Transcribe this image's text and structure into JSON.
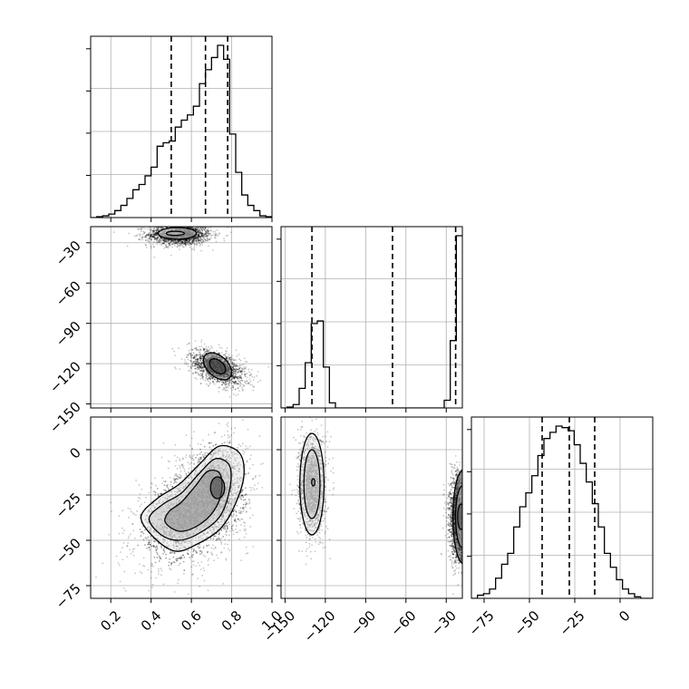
{
  "chart_data": {
    "type": "corner",
    "title": "",
    "parameters": [
      {
        "label": "",
        "range": [
          0.1,
          1.0
        ],
        "ticks": [
          0.2,
          0.4,
          0.6,
          0.8,
          1.0
        ],
        "tick_labels": [
          "0.2",
          "0.4",
          "0.6",
          "0.8",
          "1.0"
        ]
      },
      {
        "label": "",
        "range": [
          -153,
          -18
        ],
        "ticks": [
          -150,
          -120,
          -90,
          -60,
          -30
        ],
        "tick_labels": [
          "−150",
          "−120",
          "−90",
          "−60",
          "−30"
        ]
      },
      {
        "label": "",
        "range": [
          -82,
          18
        ],
        "ticks": [
          -75,
          -50,
          -25,
          0
        ],
        "tick_labels": [
          "−75",
          "−50",
          "−25",
          "0"
        ]
      }
    ],
    "grid": true,
    "histograms": [
      {
        "param": 0,
        "bin_edges": [
          0.1,
          0.13,
          0.16,
          0.19,
          0.22,
          0.25,
          0.28,
          0.31,
          0.34,
          0.37,
          0.4,
          0.43,
          0.46,
          0.49,
          0.52,
          0.55,
          0.58,
          0.61,
          0.64,
          0.67,
          0.7,
          0.73,
          0.76,
          0.79,
          0.82,
          0.85,
          0.88,
          0.91,
          0.94,
          0.97,
          1.0
        ],
        "counts": [
          0.0,
          0.005,
          0.01,
          0.02,
          0.04,
          0.07,
          0.11,
          0.16,
          0.19,
          0.24,
          0.29,
          0.41,
          0.43,
          0.44,
          0.52,
          0.56,
          0.59,
          0.64,
          0.77,
          0.85,
          0.92,
          0.99,
          0.91,
          0.48,
          0.26,
          0.13,
          0.07,
          0.04,
          0.01,
          0.005
        ],
        "quantiles": [
          0.5,
          0.67,
          0.78
        ]
      },
      {
        "param": 1,
        "bin_edges": [
          -153,
          -148.5,
          -144,
          -139.5,
          -135,
          -130.5,
          -126,
          -121.5,
          -117,
          -112.5,
          -108,
          -103.5,
          -99,
          -94.5,
          -90,
          -85.5,
          -81,
          -76.5,
          -72,
          -67.5,
          -63,
          -58.5,
          -54,
          -49.5,
          -45,
          -40.5,
          -36,
          -31.5,
          -27,
          -22.5,
          -18
        ],
        "counts": [
          0.0,
          0.01,
          0.04,
          0.23,
          0.53,
          0.99,
          1.02,
          0.48,
          0.06,
          0.0,
          0.0,
          0.0,
          0.0,
          0.0,
          0.0,
          0.0,
          0.0,
          0.0,
          0.0,
          0.0,
          0.0,
          0.0,
          0.0,
          0.0,
          0.0,
          0.0,
          0.0,
          0.09,
          0.79,
          2.02
        ],
        "quantiles": [
          -130,
          -70,
          -23
        ]
      },
      {
        "param": 2,
        "bin_edges": [
          -82,
          -78.67,
          -75.33,
          -72,
          -68.67,
          -65.33,
          -62,
          -58.67,
          -55.33,
          -52,
          -48.67,
          -45.33,
          -42,
          -38.67,
          -35.33,
          -32,
          -28.67,
          -25.33,
          -22,
          -18.67,
          -15.33,
          -12,
          -8.67,
          -5.33,
          -2,
          1.33,
          4.67,
          8,
          11.33,
          14.67,
          18
        ],
        "counts": [
          0.0,
          0.02,
          0.03,
          0.06,
          0.13,
          0.22,
          0.29,
          0.46,
          0.59,
          0.68,
          0.79,
          0.92,
          1.03,
          1.07,
          1.11,
          1.1,
          1.08,
          0.99,
          0.87,
          0.75,
          0.61,
          0.46,
          0.29,
          0.2,
          0.12,
          0.06,
          0.03,
          0.01,
          0.0,
          0.0
        ],
        "quantiles": [
          -43,
          -28,
          -14
        ]
      }
    ],
    "scatter_panels": [
      {
        "x_param": 0,
        "y_param": 1,
        "clusters": [
          {
            "cx": 0.54,
            "cy": -24,
            "sx": 0.08,
            "sy": 4,
            "rho": 0.0,
            "n": 1500
          },
          {
            "cx": 0.73,
            "cy": -123,
            "sx": 0.07,
            "sy": 7,
            "rho": -0.5,
            "n": 1300
          }
        ],
        "contours": [
          {
            "cx": 0.53,
            "cy": -23,
            "rx": 0.095,
            "ry": 4.3,
            "angle": 0
          },
          {
            "cx": 0.52,
            "cy": -23,
            "rx": 0.045,
            "ry": 1.5,
            "angle": 0
          },
          {
            "cx": 0.73,
            "cy": -122,
            "rx": 0.07,
            "ry": 9,
            "rot": -0.5
          },
          {
            "cx": 0.73,
            "cy": -122,
            "rx": 0.04,
            "ry": 5,
            "rot": -0.5
          }
        ]
      },
      {
        "x_param": 0,
        "y_param": 2,
        "clusters": [
          {
            "cx": 0.56,
            "cy": -38,
            "sx": 0.12,
            "sy": 13,
            "rho": 0.3,
            "n": 1400
          },
          {
            "cx": 0.72,
            "cy": -22,
            "sx": 0.08,
            "sy": 14,
            "rho": 0.1,
            "n": 1400
          }
        ],
        "contours": [
          {
            "points": [
              [
                0.35,
                -37
              ],
              [
                0.41,
                -48
              ],
              [
                0.52,
                -56
              ],
              [
                0.63,
                -52
              ],
              [
                0.74,
                -44
              ],
              [
                0.81,
                -32
              ],
              [
                0.86,
                -15
              ],
              [
                0.84,
                -2
              ],
              [
                0.74,
                2
              ],
              [
                0.64,
                -8
              ],
              [
                0.54,
                -19
              ],
              [
                0.43,
                -27
              ]
            ]
          },
          {
            "points": [
              [
                0.39,
                -38
              ],
              [
                0.45,
                -47
              ],
              [
                0.54,
                -50
              ],
              [
                0.64,
                -46
              ],
              [
                0.74,
                -37
              ],
              [
                0.79,
                -22
              ],
              [
                0.79,
                -9
              ],
              [
                0.72,
                -5
              ],
              [
                0.64,
                -13
              ],
              [
                0.55,
                -24
              ],
              [
                0.46,
                -30
              ]
            ]
          },
          {
            "points": [
              [
                0.47,
                -40
              ],
              [
                0.54,
                -45
              ],
              [
                0.63,
                -42
              ],
              [
                0.71,
                -34
              ],
              [
                0.75,
                -23
              ],
              [
                0.74,
                -13
              ],
              [
                0.68,
                -12
              ],
              [
                0.62,
                -20
              ],
              [
                0.55,
                -29
              ],
              [
                0.49,
                -34
              ]
            ]
          },
          {
            "cx": 0.73,
            "cy": -21,
            "rx": 0.035,
            "ry": 6,
            "angle": 0
          }
        ]
      },
      {
        "x_param": 1,
        "y_param": 2,
        "clusters": [
          {
            "cx": -130,
            "cy": -20,
            "sx": 5,
            "sy": 14,
            "rho": 0.0,
            "n": 1400
          },
          {
            "cx": -21,
            "cy": -37,
            "sx": 4,
            "sy": 13,
            "rho": 0.0,
            "n": 1200
          }
        ],
        "contours": [
          {
            "cx": -130,
            "cy": -19,
            "rx": 9,
            "ry": 28,
            "angle": 0
          },
          {
            "cx": -130,
            "cy": -19,
            "rx": 6,
            "ry": 19,
            "angle": 0
          },
          {
            "cx": -129,
            "cy": -18,
            "rx": 1.2,
            "ry": 2,
            "angle": 0
          },
          {
            "cx": -17,
            "cy": -37,
            "rx": 8,
            "ry": 26,
            "angle": 0
          },
          {
            "cx": -18,
            "cy": -37,
            "rx": 5,
            "ry": 17,
            "angle": 0
          },
          {
            "cx": -19,
            "cy": -37,
            "rx": 2.5,
            "ry": 7,
            "angle": 0
          }
        ]
      }
    ]
  }
}
